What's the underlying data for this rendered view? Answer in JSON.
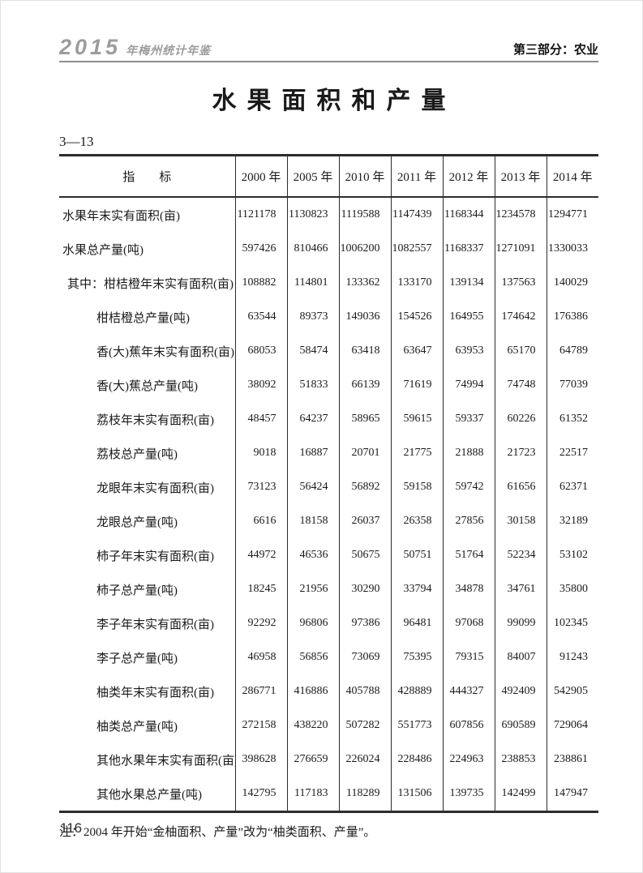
{
  "colors": {
    "logo_gray": "#9c9c9c",
    "rule_gray": "#8d8d8d",
    "text_black": "#1a1a1a"
  },
  "header": {
    "logo_year": "2015",
    "logo_title": "年梅州统计年鉴",
    "section": "第三部分：农业"
  },
  "title": "水果面积和产量",
  "table_no": "3—13",
  "table": {
    "indicator_header": "指　　标",
    "year_headers": [
      "2000 年",
      "2005 年",
      "2010 年",
      "2011 年",
      "2012 年",
      "2013 年",
      "2014 年"
    ],
    "rows": [
      {
        "label": "水果年末实有面积(亩)",
        "indent": 0,
        "values": [
          1121178,
          1130823,
          1119588,
          1147439,
          1168344,
          1234578,
          1294771
        ]
      },
      {
        "label": "水果总产量(吨)",
        "indent": 0,
        "values": [
          597426,
          810466,
          1006200,
          1082557,
          1168337,
          1271091,
          1330033
        ]
      },
      {
        "label": "其中：柑桔橙年末实有面积(亩)",
        "indent": 1,
        "values": [
          108882,
          114801,
          133362,
          133170,
          139134,
          137563,
          140029
        ]
      },
      {
        "label": "柑桔橙总产量(吨)",
        "indent": 2,
        "values": [
          63544,
          89373,
          149036,
          154526,
          164955,
          174642,
          176386
        ]
      },
      {
        "label": "香(大)蕉年末实有面积(亩)",
        "indent": 2,
        "values": [
          68053,
          58474,
          63418,
          63647,
          63953,
          65170,
          64789
        ]
      },
      {
        "label": "香(大)蕉总产量(吨)",
        "indent": 2,
        "values": [
          38092,
          51833,
          66139,
          71619,
          74994,
          74748,
          77039
        ]
      },
      {
        "label": "荔枝年末实有面积(亩)",
        "indent": 2,
        "values": [
          48457,
          64237,
          58965,
          59615,
          59337,
          60226,
          61352
        ]
      },
      {
        "label": "荔枝总产量(吨)",
        "indent": 2,
        "values": [
          9018,
          16887,
          20701,
          21775,
          21888,
          21723,
          22517
        ]
      },
      {
        "label": "龙眼年末实有面积(亩)",
        "indent": 2,
        "values": [
          73123,
          56424,
          56892,
          59158,
          59742,
          61656,
          62371
        ]
      },
      {
        "label": "龙眼总产量(吨)",
        "indent": 2,
        "values": [
          6616,
          18158,
          26037,
          26358,
          27856,
          30158,
          32189
        ]
      },
      {
        "label": "柿子年末实有面积(亩)",
        "indent": 2,
        "values": [
          44972,
          46536,
          50675,
          50751,
          51764,
          52234,
          53102
        ]
      },
      {
        "label": "柿子总产量(吨)",
        "indent": 2,
        "values": [
          18245,
          21956,
          30290,
          33794,
          34878,
          34761,
          35800
        ]
      },
      {
        "label": "李子年末实有面积(亩)",
        "indent": 2,
        "values": [
          92292,
          96806,
          97386,
          96481,
          97068,
          99099,
          102345
        ]
      },
      {
        "label": "李子总产量(吨)",
        "indent": 2,
        "values": [
          46958,
          56856,
          73069,
          75395,
          79315,
          84007,
          91243
        ]
      },
      {
        "label": "柚类年末实有面积(亩)",
        "indent": 2,
        "values": [
          286771,
          416886,
          405788,
          428889,
          444327,
          492409,
          542905
        ]
      },
      {
        "label": "柚类总产量(吨)",
        "indent": 2,
        "values": [
          272158,
          438220,
          507282,
          551773,
          607856,
          690589,
          729064
        ]
      },
      {
        "label": "其他水果年末实有面积(亩)",
        "indent": 2,
        "values": [
          398628,
          276659,
          226024,
          228486,
          224963,
          238853,
          238861
        ]
      },
      {
        "label": "其他水果总产量(吨)",
        "indent": 2,
        "values": [
          142795,
          117183,
          118289,
          131506,
          139735,
          142499,
          147947
        ]
      }
    ]
  },
  "note": "注：2004 年开始“金柚面积、产量”改为“柚类面积、产量”。",
  "page_number": "116"
}
